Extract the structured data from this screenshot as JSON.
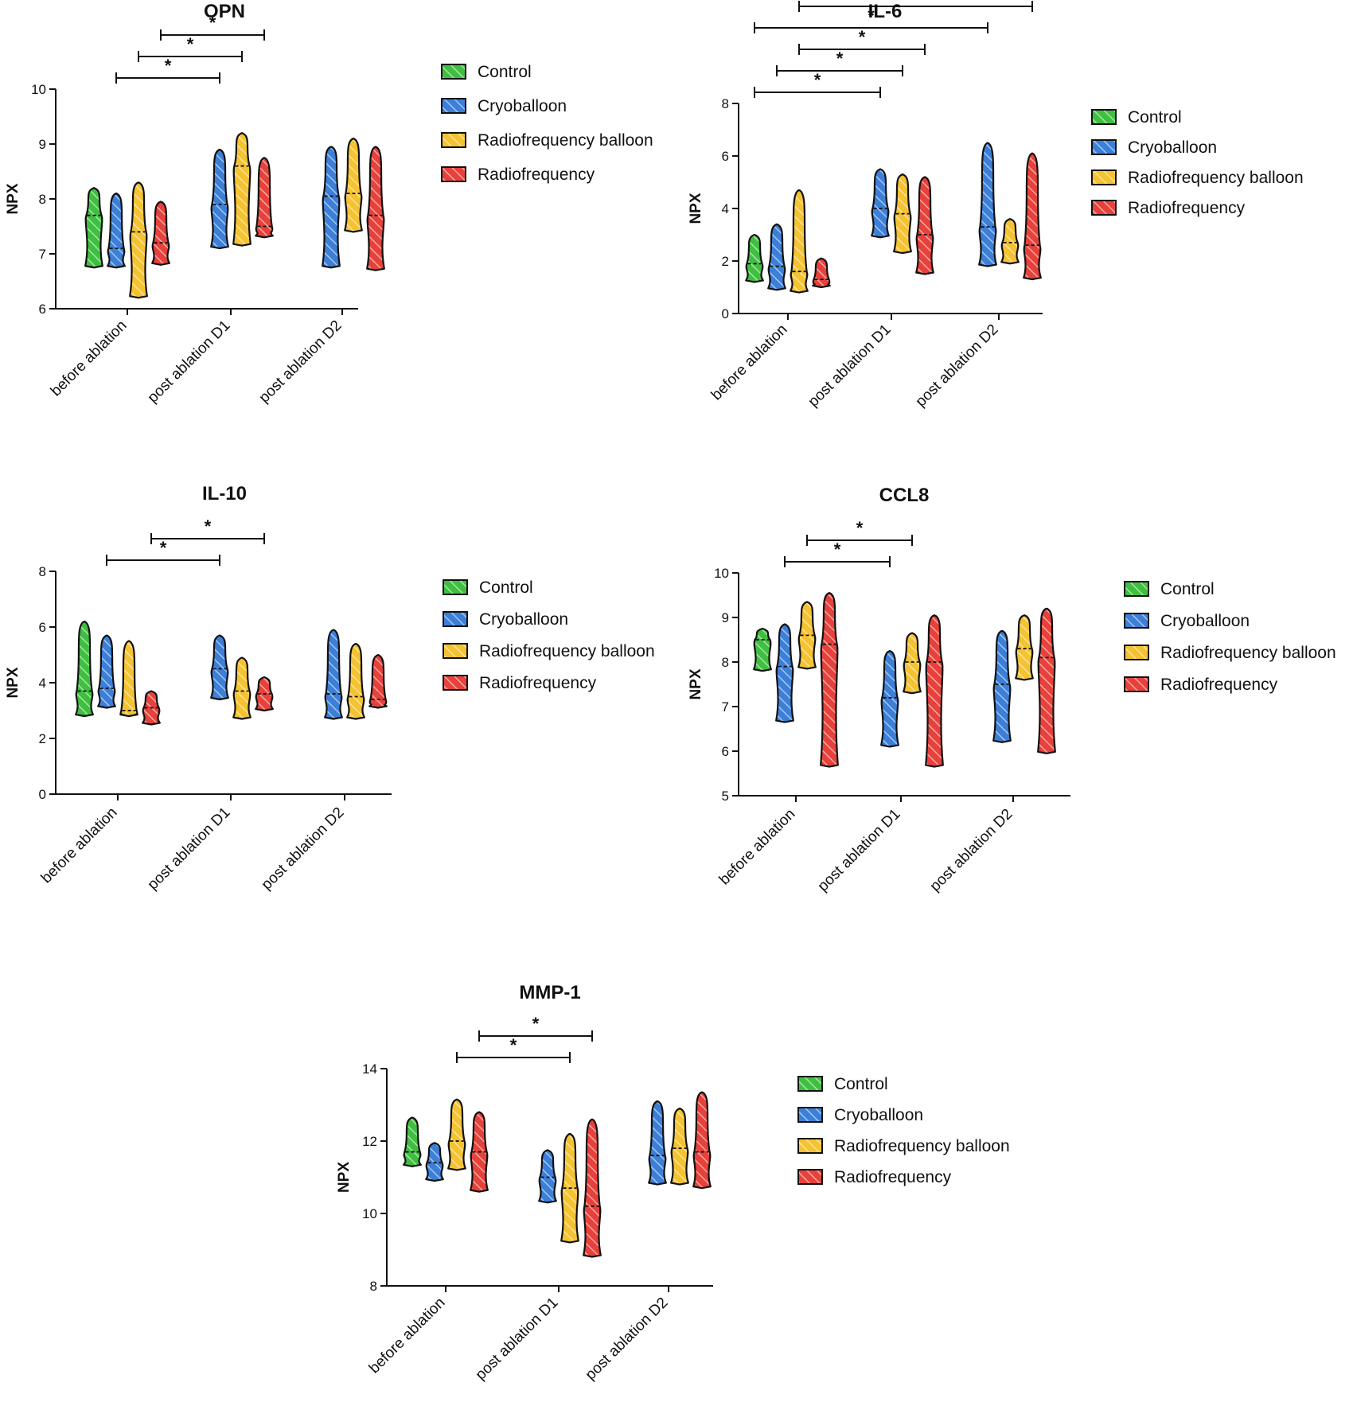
{
  "colors": {
    "Control": "#3fbf3f",
    "Cryoballoon": "#3b7fd9",
    "Radiofrequency balloon": "#f5c230",
    "Radiofrequency": "#e8403a",
    "axis": "#111111"
  },
  "legend": [
    "Control",
    "Cryoballoon",
    "Radiofrequency balloon",
    "Radiofrequency"
  ],
  "chart_data": [
    {
      "type": "violin",
      "title": "OPN",
      "xlabel": "",
      "ylabel": "NPX",
      "ylim": [
        6,
        10
      ],
      "yticks": [
        6,
        7,
        8,
        9,
        10
      ],
      "categories": [
        "before ablation",
        "post ablation D1",
        "post ablation D2"
      ],
      "legend_placement": "right",
      "series": [
        {
          "name": "Control",
          "values": [
            {
              "min": 6.75,
              "median": 7.7,
              "max": 8.2
            },
            null,
            null
          ]
        },
        {
          "name": "Cryoballoon",
          "values": [
            {
              "min": 6.75,
              "median": 7.1,
              "max": 8.1
            },
            {
              "min": 7.1,
              "median": 7.9,
              "max": 8.9
            },
            {
              "min": 6.75,
              "median": 8.05,
              "max": 8.95
            }
          ]
        },
        {
          "name": "Radiofrequency balloon",
          "values": [
            {
              "min": 6.2,
              "median": 7.4,
              "max": 8.3
            },
            {
              "min": 7.15,
              "median": 8.6,
              "max": 9.2
            },
            {
              "min": 7.4,
              "median": 8.1,
              "max": 9.1
            }
          ]
        },
        {
          "name": "Radiofrequency",
          "values": [
            {
              "min": 6.8,
              "median": 7.2,
              "max": 7.95
            },
            {
              "min": 7.3,
              "median": 7.5,
              "max": 8.75
            },
            {
              "min": 6.7,
              "median": 7.7,
              "max": 8.95
            }
          ]
        }
      ],
      "significance": [
        {
          "from": [
            0,
            1
          ],
          "to": [
            1,
            1
          ],
          "label": "*"
        },
        {
          "from": [
            0,
            2
          ],
          "to": [
            1,
            2
          ],
          "label": "*"
        },
        {
          "from": [
            0,
            3
          ],
          "to": [
            1,
            3
          ],
          "label": "*"
        }
      ]
    },
    {
      "type": "violin",
      "title": "IL-6",
      "xlabel": "",
      "ylabel": "NPX",
      "ylim": [
        0,
        8
      ],
      "yticks": [
        0,
        2,
        4,
        6,
        8
      ],
      "categories": [
        "before ablation",
        "post ablation D1",
        "post ablation D2"
      ],
      "legend_placement": "right",
      "series": [
        {
          "name": "Control",
          "values": [
            {
              "min": 1.2,
              "median": 1.9,
              "max": 3.0
            },
            null,
            null
          ]
        },
        {
          "name": "Cryoballoon",
          "values": [
            {
              "min": 0.9,
              "median": 1.8,
              "max": 3.4
            },
            {
              "min": 2.9,
              "median": 4.0,
              "max": 5.5
            },
            {
              "min": 1.8,
              "median": 3.3,
              "max": 6.5
            }
          ]
        },
        {
          "name": "Radiofrequency balloon",
          "values": [
            {
              "min": 0.8,
              "median": 1.6,
              "max": 4.7
            },
            {
              "min": 2.3,
              "median": 3.8,
              "max": 5.3
            },
            {
              "min": 1.9,
              "median": 2.7,
              "max": 3.6
            }
          ]
        },
        {
          "name": "Radiofrequency",
          "values": [
            {
              "min": 1.0,
              "median": 1.3,
              "max": 2.1
            },
            {
              "min": 1.5,
              "median": 3.0,
              "max": 5.2
            },
            {
              "min": 1.3,
              "median": 2.6,
              "max": 6.1
            }
          ]
        }
      ],
      "significance": [
        {
          "from": [
            0,
            0
          ],
          "to": [
            1,
            1
          ],
          "label": "*"
        },
        {
          "from": [
            0,
            1
          ],
          "to": [
            1,
            2
          ],
          "label": "*"
        },
        {
          "from": [
            0,
            2
          ],
          "to": [
            1,
            3
          ],
          "label": "*"
        },
        {
          "from": [
            0,
            0
          ],
          "to": [
            2,
            1
          ],
          "label": "*"
        },
        {
          "from": [
            0,
            2
          ],
          "to": [
            2,
            3
          ],
          "label": "*"
        }
      ]
    },
    {
      "type": "violin",
      "title": "IL-10",
      "xlabel": "",
      "ylabel": "NPX",
      "ylim": [
        0,
        8
      ],
      "yticks": [
        0,
        2,
        4,
        6,
        8
      ],
      "categories": [
        "before ablation",
        "post ablation D1",
        "post ablation D2"
      ],
      "legend_placement": "right",
      "series": [
        {
          "name": "Control",
          "values": [
            {
              "min": 2.8,
              "median": 3.7,
              "max": 6.2
            },
            null,
            null
          ]
        },
        {
          "name": "Cryoballoon",
          "values": [
            {
              "min": 3.1,
              "median": 3.8,
              "max": 5.7
            },
            {
              "min": 3.4,
              "median": 4.5,
              "max": 5.7
            },
            {
              "min": 2.7,
              "median": 3.6,
              "max": 5.9
            }
          ]
        },
        {
          "name": "Radiofrequency balloon",
          "values": [
            {
              "min": 2.8,
              "median": 3.0,
              "max": 5.5
            },
            {
              "min": 2.7,
              "median": 3.7,
              "max": 4.9
            },
            {
              "min": 2.7,
              "median": 3.5,
              "max": 5.4
            }
          ]
        },
        {
          "name": "Radiofrequency",
          "values": [
            {
              "min": 2.5,
              "median": 3.1,
              "max": 3.7
            },
            {
              "min": 3.0,
              "median": 3.6,
              "max": 4.2
            },
            {
              "min": 3.1,
              "median": 3.4,
              "max": 5.0
            }
          ]
        }
      ],
      "significance": [
        {
          "from": [
            0,
            1
          ],
          "to": [
            1,
            1
          ],
          "label": "*"
        },
        {
          "from": [
            0,
            3
          ],
          "to": [
            1,
            3
          ],
          "label": "*"
        }
      ]
    },
    {
      "type": "violin",
      "title": "CCL8",
      "xlabel": "",
      "ylabel": "NPX",
      "ylim": [
        5,
        10
      ],
      "yticks": [
        5,
        6,
        7,
        8,
        9,
        10
      ],
      "categories": [
        "before ablation",
        "post ablation D1",
        "post ablation D2"
      ],
      "legend_placement": "right",
      "series": [
        {
          "name": "Control",
          "values": [
            {
              "min": 7.8,
              "median": 8.5,
              "max": 8.75
            },
            null,
            null
          ]
        },
        {
          "name": "Cryoballoon",
          "values": [
            {
              "min": 6.65,
              "median": 7.9,
              "max": 8.85
            },
            {
              "min": 6.1,
              "median": 7.2,
              "max": 8.25
            },
            {
              "min": 6.2,
              "median": 7.5,
              "max": 8.7
            }
          ]
        },
        {
          "name": "Radiofrequency balloon",
          "values": [
            {
              "min": 7.85,
              "median": 8.6,
              "max": 9.35
            },
            {
              "min": 7.3,
              "median": 8.0,
              "max": 8.65
            },
            {
              "min": 7.6,
              "median": 8.3,
              "max": 9.05
            }
          ]
        },
        {
          "name": "Radiofrequency",
          "values": [
            {
              "min": 5.65,
              "median": 8.4,
              "max": 9.55
            },
            {
              "min": 5.65,
              "median": 8.0,
              "max": 9.05
            },
            {
              "min": 5.95,
              "median": 8.1,
              "max": 9.2
            }
          ]
        }
      ],
      "significance": [
        {
          "from": [
            0,
            1
          ],
          "to": [
            1,
            1
          ],
          "label": "*"
        },
        {
          "from": [
            0,
            2
          ],
          "to": [
            1,
            2
          ],
          "label": "*"
        }
      ]
    },
    {
      "type": "violin",
      "title": "MMP-1",
      "xlabel": "",
      "ylabel": "NPX",
      "ylim": [
        8,
        14
      ],
      "yticks": [
        8,
        10,
        12,
        14
      ],
      "categories": [
        "before ablation",
        "post ablation D1",
        "post ablation D2"
      ],
      "legend_placement": "right",
      "series": [
        {
          "name": "Control",
          "values": [
            {
              "min": 11.3,
              "median": 11.7,
              "max": 12.65
            },
            null,
            null
          ]
        },
        {
          "name": "Cryoballoon",
          "values": [
            {
              "min": 10.9,
              "median": 11.4,
              "max": 11.95
            },
            {
              "min": 10.3,
              "median": 11.0,
              "max": 11.75
            },
            {
              "min": 10.8,
              "median": 11.6,
              "max": 13.1
            }
          ]
        },
        {
          "name": "Radiofrequency balloon",
          "values": [
            {
              "min": 11.2,
              "median": 12.0,
              "max": 13.15
            },
            {
              "min": 9.2,
              "median": 10.7,
              "max": 12.2
            },
            {
              "min": 10.8,
              "median": 11.8,
              "max": 12.9
            }
          ]
        },
        {
          "name": "Radiofrequency",
          "values": [
            {
              "min": 10.6,
              "median": 11.7,
              "max": 12.8
            },
            {
              "min": 8.8,
              "median": 10.2,
              "max": 12.6
            },
            {
              "min": 10.7,
              "median": 11.7,
              "max": 13.35
            }
          ]
        }
      ],
      "significance": [
        {
          "from": [
            0,
            2
          ],
          "to": [
            1,
            2
          ],
          "label": "*"
        },
        {
          "from": [
            0,
            3
          ],
          "to": [
            1,
            3
          ],
          "label": "*"
        }
      ]
    }
  ]
}
